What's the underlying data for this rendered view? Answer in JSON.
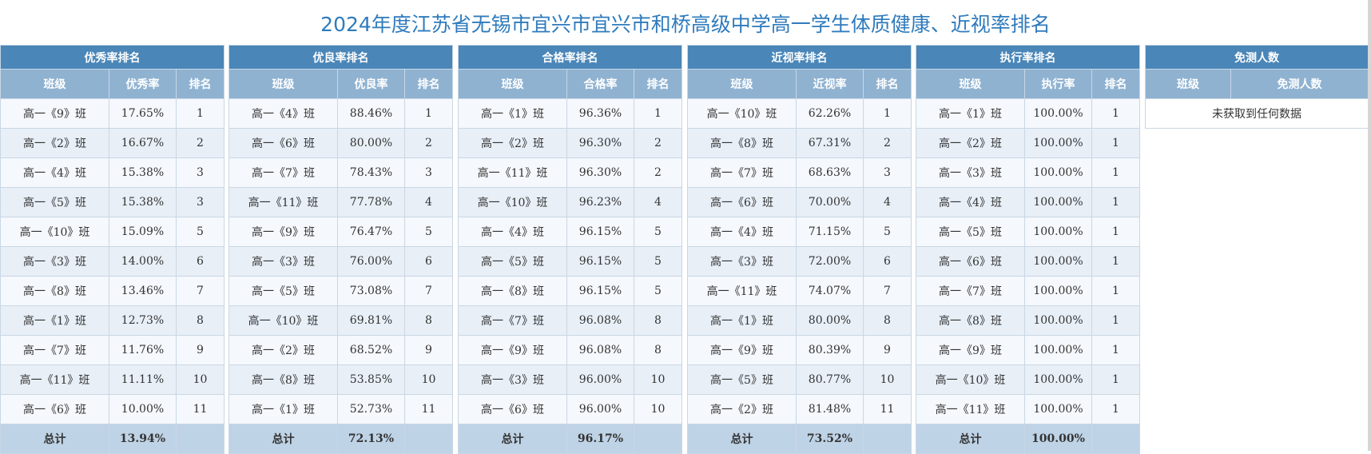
{
  "title": "2024年度江苏省无锡市宜兴市宜兴市和桥高级中学高一学生体质健康、近视率排名",
  "panels": [
    {
      "heading": "优秀率排名",
      "columns": [
        "班级",
        "优秀率",
        "排名"
      ],
      "rows": [
        [
          "高一《9》班",
          "17.65%",
          "1"
        ],
        [
          "高一《2》班",
          "16.67%",
          "2"
        ],
        [
          "高一《4》班",
          "15.38%",
          "3"
        ],
        [
          "高一《5》班",
          "15.38%",
          "3"
        ],
        [
          "高一《10》班",
          "15.09%",
          "5"
        ],
        [
          "高一《3》班",
          "14.00%",
          "6"
        ],
        [
          "高一《8》班",
          "13.46%",
          "7"
        ],
        [
          "高一《1》班",
          "12.73%",
          "8"
        ],
        [
          "高一《7》班",
          "11.76%",
          "9"
        ],
        [
          "高一《11》班",
          "11.11%",
          "10"
        ],
        [
          "高一《6》班",
          "10.00%",
          "11"
        ]
      ],
      "total": [
        "总计",
        "13.94%",
        ""
      ]
    },
    {
      "heading": "优良率排名",
      "columns": [
        "班级",
        "优良率",
        "排名"
      ],
      "rows": [
        [
          "高一《4》班",
          "88.46%",
          "1"
        ],
        [
          "高一《6》班",
          "80.00%",
          "2"
        ],
        [
          "高一《7》班",
          "78.43%",
          "3"
        ],
        [
          "高一《11》班",
          "77.78%",
          "4"
        ],
        [
          "高一《9》班",
          "76.47%",
          "5"
        ],
        [
          "高一《3》班",
          "76.00%",
          "6"
        ],
        [
          "高一《5》班",
          "73.08%",
          "7"
        ],
        [
          "高一《10》班",
          "69.81%",
          "8"
        ],
        [
          "高一《2》班",
          "68.52%",
          "9"
        ],
        [
          "高一《8》班",
          "53.85%",
          "10"
        ],
        [
          "高一《1》班",
          "52.73%",
          "11"
        ]
      ],
      "total": [
        "总计",
        "72.13%",
        ""
      ]
    },
    {
      "heading": "合格率排名",
      "columns": [
        "班级",
        "合格率",
        "排名"
      ],
      "rows": [
        [
          "高一《1》班",
          "96.36%",
          "1"
        ],
        [
          "高一《2》班",
          "96.30%",
          "2"
        ],
        [
          "高一《11》班",
          "96.30%",
          "2"
        ],
        [
          "高一《10》班",
          "96.23%",
          "4"
        ],
        [
          "高一《4》班",
          "96.15%",
          "5"
        ],
        [
          "高一《5》班",
          "96.15%",
          "5"
        ],
        [
          "高一《8》班",
          "96.15%",
          "5"
        ],
        [
          "高一《7》班",
          "96.08%",
          "8"
        ],
        [
          "高一《9》班",
          "96.08%",
          "8"
        ],
        [
          "高一《3》班",
          "96.00%",
          "10"
        ],
        [
          "高一《6》班",
          "96.00%",
          "10"
        ]
      ],
      "total": [
        "总计",
        "96.17%",
        ""
      ]
    },
    {
      "heading": "近视率排名",
      "columns": [
        "班级",
        "近视率",
        "排名"
      ],
      "rows": [
        [
          "高一《10》班",
          "62.26%",
          "1"
        ],
        [
          "高一《8》班",
          "67.31%",
          "2"
        ],
        [
          "高一《7》班",
          "68.63%",
          "3"
        ],
        [
          "高一《6》班",
          "70.00%",
          "4"
        ],
        [
          "高一《4》班",
          "71.15%",
          "5"
        ],
        [
          "高一《3》班",
          "72.00%",
          "6"
        ],
        [
          "高一《11》班",
          "74.07%",
          "7"
        ],
        [
          "高一《1》班",
          "80.00%",
          "8"
        ],
        [
          "高一《9》班",
          "80.39%",
          "9"
        ],
        [
          "高一《5》班",
          "80.77%",
          "10"
        ],
        [
          "高一《2》班",
          "81.48%",
          "11"
        ]
      ],
      "total": [
        "总计",
        "73.52%",
        ""
      ]
    },
    {
      "heading": "执行率排名",
      "columns": [
        "班级",
        "执行率",
        "排名"
      ],
      "rows": [
        [
          "高一《1》班",
          "100.00%",
          "1"
        ],
        [
          "高一《2》班",
          "100.00%",
          "1"
        ],
        [
          "高一《3》班",
          "100.00%",
          "1"
        ],
        [
          "高一《4》班",
          "100.00%",
          "1"
        ],
        [
          "高一《5》班",
          "100.00%",
          "1"
        ],
        [
          "高一《6》班",
          "100.00%",
          "1"
        ],
        [
          "高一《7》班",
          "100.00%",
          "1"
        ],
        [
          "高一《8》班",
          "100.00%",
          "1"
        ],
        [
          "高一《9》班",
          "100.00%",
          "1"
        ],
        [
          "高一《10》班",
          "100.00%",
          "1"
        ],
        [
          "高一《11》班",
          "100.00%",
          "1"
        ]
      ],
      "total": [
        "总计",
        "100.00%",
        ""
      ]
    }
  ],
  "exempt": {
    "heading": "免测人数",
    "columns": [
      "班级",
      "免测人数"
    ],
    "empty_message": "未获取到任何数据"
  }
}
